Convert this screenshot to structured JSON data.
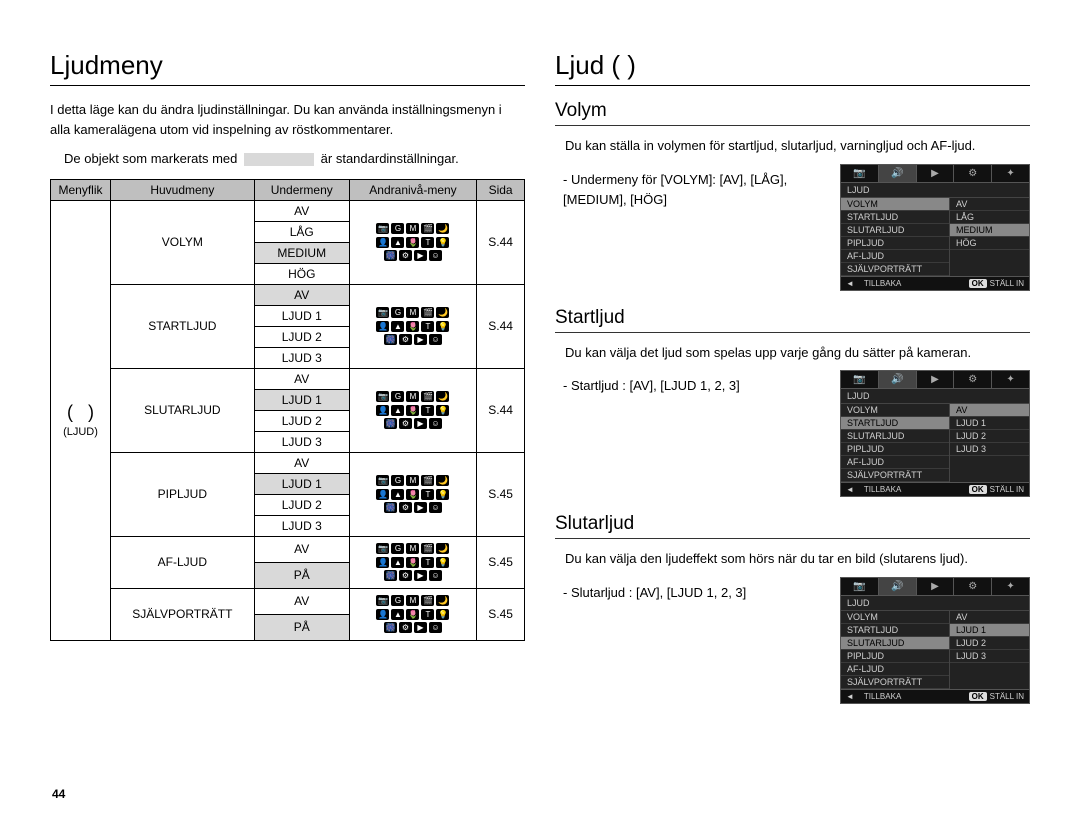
{
  "page_number": "44",
  "left": {
    "heading": "Ljudmeny",
    "intro": "I detta läge kan du ändra ljudinställningar. Du kan använda inställningsmenyn i alla kameralägena utom vid inspelning av röstkommentarer.",
    "note_before": "De objekt som markerats med",
    "note_after": "är standardinställningar.",
    "table": {
      "headers": [
        "Menyflik",
        "Huvudmeny",
        "Undermeny",
        "Andranivå-meny",
        "Sida"
      ],
      "tab_label": "(LJUD)",
      "groups": [
        {
          "main": "VOLYM",
          "subs": [
            {
              "t": "AV",
              "shade": false
            },
            {
              "t": "LÅG",
              "shade": false
            },
            {
              "t": "MEDIUM",
              "shade": true
            },
            {
              "t": "HÖG",
              "shade": false
            }
          ],
          "page": "S.44"
        },
        {
          "main": "STARTLJUD",
          "subs": [
            {
              "t": "AV",
              "shade": true
            },
            {
              "t": "LJUD 1",
              "shade": false
            },
            {
              "t": "LJUD 2",
              "shade": false
            },
            {
              "t": "LJUD 3",
              "shade": false
            }
          ],
          "page": "S.44"
        },
        {
          "main": "SLUTARLJUD",
          "subs": [
            {
              "t": "AV",
              "shade": false
            },
            {
              "t": "LJUD 1",
              "shade": true
            },
            {
              "t": "LJUD 2",
              "shade": false
            },
            {
              "t": "LJUD 3",
              "shade": false
            }
          ],
          "page": "S.44"
        },
        {
          "main": "PIPLJUD",
          "subs": [
            {
              "t": "AV",
              "shade": false
            },
            {
              "t": "LJUD 1",
              "shade": true
            },
            {
              "t": "LJUD 2",
              "shade": false
            },
            {
              "t": "LJUD 3",
              "shade": false
            }
          ],
          "page": "S.45"
        },
        {
          "main": "AF-LJUD",
          "subs": [
            {
              "t": "AV",
              "shade": false,
              "tall": true
            },
            {
              "t": "PÅ",
              "shade": true,
              "tall": true
            }
          ],
          "page": "S.45"
        },
        {
          "main": "SJÄLVPORTRÄTT",
          "subs": [
            {
              "t": "AV",
              "shade": false,
              "tall": true
            },
            {
              "t": "PÅ",
              "shade": true,
              "tall": true
            }
          ],
          "page": "S.45"
        }
      ]
    },
    "mode_icons": [
      [
        "📷",
        "G",
        "M",
        "🎬",
        "🌙"
      ],
      [
        "👤",
        "▲",
        "🌷",
        "T",
        "💡"
      ],
      [
        "🎆",
        "⚙",
        "▶",
        "☺",
        ""
      ]
    ]
  },
  "right": {
    "heading": "Ljud (     )",
    "sections": [
      {
        "title": "Volym",
        "desc": "Du kan ställa in volymen för startljud, slutarljud, varningljud och AF-ljud.",
        "bullet": "- Undermeny för [VOLYM]: [AV], [LÅG], [MEDIUM], [HÖG]",
        "lcd": {
          "title": "LJUD",
          "left_items": [
            "VOLYM",
            "STARTLJUD",
            "SLUTARLJUD",
            "PIPLJUD",
            "AF-LJUD",
            "SJÄLVPORTRÄTT"
          ],
          "left_hl": 0,
          "right_items": [
            "AV",
            "LÅG",
            "MEDIUM",
            "HÖG"
          ],
          "right_hl": 2
        }
      },
      {
        "title": "Startljud",
        "desc": "Du kan välja det ljud som spelas upp varje gång du sätter på kameran.",
        "bullet": "- Startljud : [AV], [LJUD 1, 2, 3]",
        "lcd": {
          "title": "LJUD",
          "left_items": [
            "VOLYM",
            "STARTLJUD",
            "SLUTARLJUD",
            "PIPLJUD",
            "AF-LJUD",
            "SJÄLVPORTRÄTT"
          ],
          "left_hl": 1,
          "right_items": [
            "AV",
            "LJUD 1",
            "LJUD 2",
            "LJUD 3"
          ],
          "right_hl": 0
        }
      },
      {
        "title": "Slutarljud",
        "desc": "Du kan välja den ljudeffekt som hörs när du tar en bild (slutarens ljud).",
        "bullet": "- Slutarljud : [AV], [LJUD 1, 2, 3]",
        "lcd": {
          "title": "LJUD",
          "left_items": [
            "VOLYM",
            "STARTLJUD",
            "SLUTARLJUD",
            "PIPLJUD",
            "AF-LJUD",
            "SJÄLVPORTRÄTT"
          ],
          "left_hl": 2,
          "right_items": [
            "AV",
            "LJUD 1",
            "LJUD 2",
            "LJUD 3"
          ],
          "right_hl": 1
        }
      }
    ],
    "lcd_footer": {
      "back": "TILLBAKA",
      "ok": "OK",
      "set": "STÄLL IN",
      "arrow": "◄"
    },
    "lcd_tabs": [
      "📷",
      "🔊",
      "▶",
      "⚙",
      "✦"
    ]
  }
}
